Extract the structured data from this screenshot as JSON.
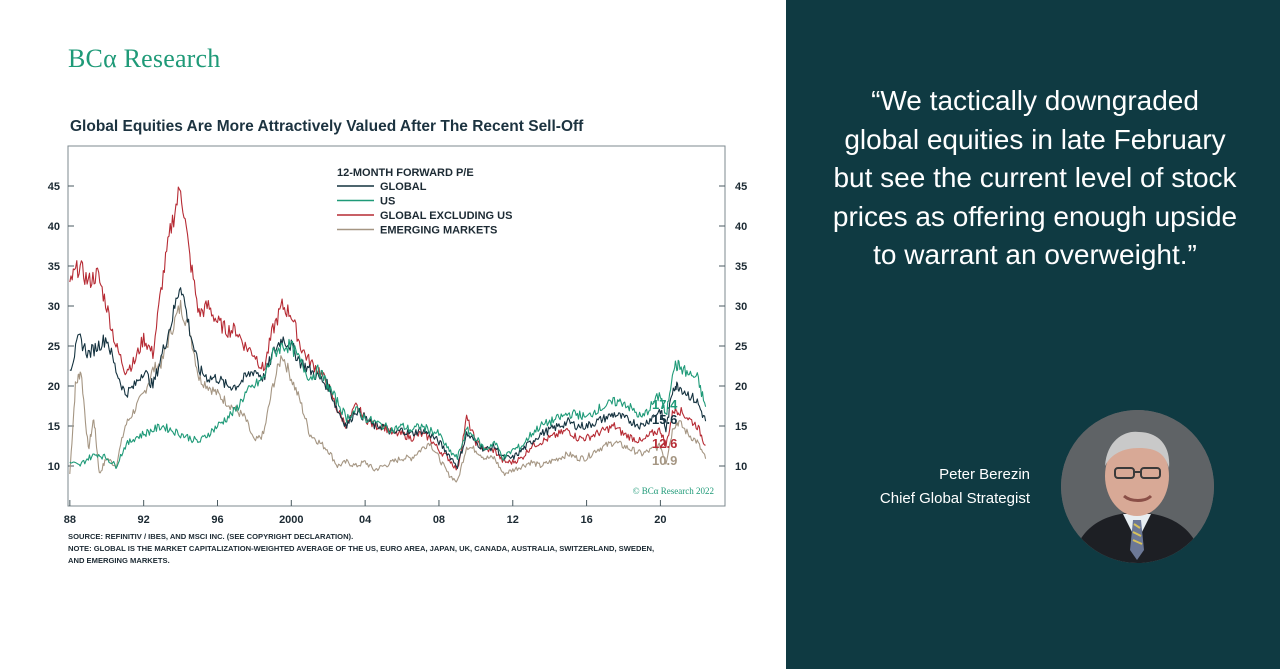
{
  "brand": {
    "logo": "BCα Research"
  },
  "chart_title": "Global Equities Are More Attractively Valued After The Recent Sell-Off",
  "chart_data": {
    "type": "line",
    "title": "Global Equities Are More Attractively Valued After The Recent Sell-Off",
    "legend_title": "12-MONTH FORWARD P/E",
    "legend_placement": "top-center",
    "x_ticks": [
      "88",
      "92",
      "96",
      "2000",
      "04",
      "08",
      "12",
      "16",
      "20"
    ],
    "x_tick_years": [
      1988,
      1992,
      1996,
      2000,
      2004,
      2008,
      2012,
      2016,
      2020
    ],
    "xlim": [
      1987.9,
      2023.5
    ],
    "y_ticks": [
      10,
      15,
      20,
      25,
      30,
      35,
      40,
      45
    ],
    "ylim": [
      5,
      50
    ],
    "grid": false,
    "copyright": "© BCα Research 2022",
    "series": [
      {
        "name": "GLOBAL",
        "color": "#14323f",
        "end_label": "15.6",
        "points": [
          [
            1988.0,
            22
          ],
          [
            1988.5,
            26
          ],
          [
            1989.0,
            24
          ],
          [
            1989.5,
            25
          ],
          [
            1990.0,
            26
          ],
          [
            1990.5,
            22
          ],
          [
            1991.0,
            19
          ],
          [
            1991.5,
            20
          ],
          [
            1992.0,
            22
          ],
          [
            1992.5,
            20
          ],
          [
            1993.0,
            24
          ],
          [
            1993.5,
            28
          ],
          [
            1994.0,
            33
          ],
          [
            1994.5,
            27
          ],
          [
            1995.0,
            22
          ],
          [
            1995.5,
            21
          ],
          [
            1996.0,
            21
          ],
          [
            1996.5,
            20
          ],
          [
            1997.0,
            20
          ],
          [
            1997.5,
            21
          ],
          [
            1998.0,
            22
          ],
          [
            1998.5,
            21
          ],
          [
            1999.0,
            24
          ],
          [
            1999.5,
            26
          ],
          [
            2000.0,
            25
          ],
          [
            2000.5,
            23
          ],
          [
            2001.0,
            22
          ],
          [
            2001.5,
            21
          ],
          [
            2002.0,
            20
          ],
          [
            2002.5,
            17
          ],
          [
            2003.0,
            15
          ],
          [
            2003.5,
            17
          ],
          [
            2004.0,
            16
          ],
          [
            2004.5,
            15
          ],
          [
            2005.0,
            15
          ],
          [
            2005.5,
            14
          ],
          [
            2006.0,
            14.5
          ],
          [
            2006.5,
            14
          ],
          [
            2007.0,
            14.5
          ],
          [
            2007.5,
            14
          ],
          [
            2008.0,
            13
          ],
          [
            2008.5,
            11.5
          ],
          [
            2009.0,
            10
          ],
          [
            2009.5,
            14
          ],
          [
            2010.0,
            13
          ],
          [
            2010.5,
            12
          ],
          [
            2011.0,
            12.5
          ],
          [
            2011.5,
            11
          ],
          [
            2012.0,
            11
          ],
          [
            2012.5,
            12
          ],
          [
            2013.0,
            13
          ],
          [
            2013.5,
            14
          ],
          [
            2014.0,
            14.5
          ],
          [
            2014.5,
            15
          ],
          [
            2015.0,
            15.5
          ],
          [
            2015.5,
            15
          ],
          [
            2016.0,
            15
          ],
          [
            2016.5,
            15.5
          ],
          [
            2017.0,
            16
          ],
          [
            2017.5,
            16.5
          ],
          [
            2018.0,
            16
          ],
          [
            2018.5,
            15.5
          ],
          [
            2019.0,
            15
          ],
          [
            2019.5,
            16
          ],
          [
            2020.0,
            17
          ],
          [
            2020.3,
            14.5
          ],
          [
            2020.7,
            20
          ],
          [
            2021.0,
            20
          ],
          [
            2021.5,
            19
          ],
          [
            2022.0,
            18
          ],
          [
            2022.45,
            15.6
          ]
        ]
      },
      {
        "name": "US",
        "color": "#1f9a78",
        "end_label": "17.4",
        "points": [
          [
            1988.0,
            10.5
          ],
          [
            1988.5,
            10
          ],
          [
            1989.0,
            11
          ],
          [
            1989.5,
            11.5
          ],
          [
            1990.0,
            11
          ],
          [
            1990.5,
            10
          ],
          [
            1991.0,
            12.5
          ],
          [
            1991.5,
            13.5
          ],
          [
            1992.0,
            14
          ],
          [
            1992.5,
            14.5
          ],
          [
            1993.0,
            15
          ],
          [
            1993.5,
            14.5
          ],
          [
            1994.0,
            14
          ],
          [
            1994.5,
            13.5
          ],
          [
            1995.0,
            13
          ],
          [
            1995.5,
            14
          ],
          [
            1996.0,
            15
          ],
          [
            1996.5,
            16
          ],
          [
            1997.0,
            17
          ],
          [
            1997.5,
            19
          ],
          [
            1998.0,
            20
          ],
          [
            1998.5,
            21
          ],
          [
            1999.0,
            24
          ],
          [
            1999.5,
            25
          ],
          [
            2000.0,
            25
          ],
          [
            2000.5,
            23
          ],
          [
            2001.0,
            21
          ],
          [
            2001.5,
            22
          ],
          [
            2002.0,
            20
          ],
          [
            2002.5,
            18
          ],
          [
            2003.0,
            16
          ],
          [
            2003.5,
            17
          ],
          [
            2004.0,
            16
          ],
          [
            2004.5,
            15.5
          ],
          [
            2005.0,
            15
          ],
          [
            2005.5,
            14.5
          ],
          [
            2006.0,
            15
          ],
          [
            2006.5,
            14.5
          ],
          [
            2007.0,
            15
          ],
          [
            2007.5,
            14.5
          ],
          [
            2008.0,
            14
          ],
          [
            2008.5,
            12
          ],
          [
            2009.0,
            11
          ],
          [
            2009.5,
            14.5
          ],
          [
            2010.0,
            13.5
          ],
          [
            2010.5,
            12
          ],
          [
            2011.0,
            13
          ],
          [
            2011.5,
            11
          ],
          [
            2012.0,
            12
          ],
          [
            2012.5,
            12.5
          ],
          [
            2013.0,
            14
          ],
          [
            2013.5,
            15
          ],
          [
            2014.0,
            15.5
          ],
          [
            2014.5,
            16
          ],
          [
            2015.0,
            16.5
          ],
          [
            2015.5,
            16.5
          ],
          [
            2016.0,
            16
          ],
          [
            2016.5,
            17
          ],
          [
            2017.0,
            17.5
          ],
          [
            2017.5,
            18
          ],
          [
            2018.0,
            18
          ],
          [
            2018.5,
            17
          ],
          [
            2019.0,
            16
          ],
          [
            2019.5,
            17.5
          ],
          [
            2020.0,
            19
          ],
          [
            2020.3,
            16
          ],
          [
            2020.7,
            22.5
          ],
          [
            2021.0,
            22.5
          ],
          [
            2021.5,
            21.5
          ],
          [
            2022.0,
            21
          ],
          [
            2022.45,
            17.4
          ]
        ]
      },
      {
        "name": "GLOBAL EXCLUDING US",
        "color": "#b62b34",
        "end_label": "12.6",
        "points": [
          [
            1988.0,
            33
          ],
          [
            1988.5,
            35
          ],
          [
            1989.0,
            33
          ],
          [
            1989.5,
            34
          ],
          [
            1990.0,
            30
          ],
          [
            1990.5,
            25
          ],
          [
            1991.0,
            22
          ],
          [
            1991.5,
            23
          ],
          [
            1992.0,
            26
          ],
          [
            1992.5,
            24
          ],
          [
            1993.0,
            33
          ],
          [
            1993.5,
            40
          ],
          [
            1994.0,
            45
          ],
          [
            1994.5,
            36
          ],
          [
            1995.0,
            29
          ],
          [
            1995.5,
            30
          ],
          [
            1996.0,
            28
          ],
          [
            1996.5,
            27
          ],
          [
            1997.0,
            27
          ],
          [
            1997.5,
            25
          ],
          [
            1998.0,
            24
          ],
          [
            1998.5,
            22
          ],
          [
            1999.0,
            27
          ],
          [
            1999.5,
            30
          ],
          [
            2000.0,
            29
          ],
          [
            2000.5,
            25
          ],
          [
            2001.0,
            23
          ],
          [
            2001.5,
            22
          ],
          [
            2002.0,
            20
          ],
          [
            2002.5,
            17
          ],
          [
            2003.0,
            15
          ],
          [
            2003.5,
            17.5
          ],
          [
            2004.0,
            16
          ],
          [
            2004.5,
            15
          ],
          [
            2005.0,
            15
          ],
          [
            2005.5,
            14
          ],
          [
            2006.0,
            14
          ],
          [
            2006.5,
            13.5
          ],
          [
            2007.0,
            14
          ],
          [
            2007.5,
            13.5
          ],
          [
            2008.0,
            12
          ],
          [
            2008.5,
            11
          ],
          [
            2009.0,
            9.5
          ],
          [
            2009.5,
            16
          ],
          [
            2010.0,
            13
          ],
          [
            2010.5,
            12
          ],
          [
            2011.0,
            12
          ],
          [
            2011.5,
            10.5
          ],
          [
            2012.0,
            10.5
          ],
          [
            2012.5,
            11
          ],
          [
            2013.0,
            12.5
          ],
          [
            2013.5,
            13
          ],
          [
            2014.0,
            13.5
          ],
          [
            2014.5,
            14
          ],
          [
            2015.0,
            14.5
          ],
          [
            2015.5,
            13.5
          ],
          [
            2016.0,
            13.5
          ],
          [
            2016.5,
            14
          ],
          [
            2017.0,
            14.5
          ],
          [
            2017.5,
            15
          ],
          [
            2018.0,
            14
          ],
          [
            2018.5,
            13.5
          ],
          [
            2019.0,
            13
          ],
          [
            2019.5,
            14
          ],
          [
            2020.0,
            14.5
          ],
          [
            2020.3,
            12.5
          ],
          [
            2020.7,
            17
          ],
          [
            2021.0,
            17
          ],
          [
            2021.5,
            16
          ],
          [
            2022.0,
            15
          ],
          [
            2022.45,
            12.6
          ]
        ]
      },
      {
        "name": "EMERGING MARKETS",
        "color": "#a59683",
        "end_label": "10.9",
        "points": [
          [
            1988.0,
            9
          ],
          [
            1988.3,
            20
          ],
          [
            1988.6,
            22
          ],
          [
            1989.0,
            12
          ],
          [
            1989.3,
            16
          ],
          [
            1989.6,
            9
          ],
          [
            1990.0,
            11
          ],
          [
            1990.5,
            10
          ],
          [
            1991.0,
            15
          ],
          [
            1991.5,
            17
          ],
          [
            1992.0,
            19
          ],
          [
            1992.5,
            22
          ],
          [
            1993.0,
            23
          ],
          [
            1993.5,
            27
          ],
          [
            1994.0,
            30
          ],
          [
            1994.5,
            27
          ],
          [
            1995.0,
            21
          ],
          [
            1995.5,
            20
          ],
          [
            1996.0,
            19
          ],
          [
            1996.5,
            18
          ],
          [
            1997.0,
            17
          ],
          [
            1997.5,
            16
          ],
          [
            1998.0,
            13
          ],
          [
            1998.5,
            14
          ],
          [
            1999.0,
            20
          ],
          [
            1999.5,
            24
          ],
          [
            2000.0,
            21
          ],
          [
            2000.5,
            18
          ],
          [
            2001.0,
            14
          ],
          [
            2001.5,
            13
          ],
          [
            2002.0,
            12
          ],
          [
            2002.5,
            10
          ],
          [
            2003.0,
            10.5
          ],
          [
            2003.5,
            10
          ],
          [
            2004.0,
            10.5
          ],
          [
            2004.5,
            9.5
          ],
          [
            2005.0,
            10
          ],
          [
            2005.5,
            10.5
          ],
          [
            2006.0,
            11
          ],
          [
            2006.5,
            11
          ],
          [
            2007.0,
            12
          ],
          [
            2007.5,
            13
          ],
          [
            2008.0,
            11
          ],
          [
            2008.5,
            9
          ],
          [
            2009.0,
            8
          ],
          [
            2009.5,
            12.5
          ],
          [
            2010.0,
            12
          ],
          [
            2010.5,
            11
          ],
          [
            2011.0,
            11
          ],
          [
            2011.5,
            9
          ],
          [
            2012.0,
            9.5
          ],
          [
            2012.5,
            10
          ],
          [
            2013.0,
            10.5
          ],
          [
            2013.5,
            10
          ],
          [
            2014.0,
            10.5
          ],
          [
            2014.5,
            11
          ],
          [
            2015.0,
            11.5
          ],
          [
            2015.5,
            11
          ],
          [
            2016.0,
            11
          ],
          [
            2016.5,
            12
          ],
          [
            2017.0,
            12.5
          ],
          [
            2017.5,
            13
          ],
          [
            2018.0,
            12.5
          ],
          [
            2018.5,
            12
          ],
          [
            2019.0,
            11.5
          ],
          [
            2019.5,
            12
          ],
          [
            2020.0,
            12.5
          ],
          [
            2020.3,
            10.5
          ],
          [
            2020.7,
            15
          ],
          [
            2021.0,
            15.5
          ],
          [
            2021.5,
            14
          ],
          [
            2022.0,
            13
          ],
          [
            2022.45,
            10.9
          ]
        ]
      }
    ]
  },
  "notes": {
    "source": "SOURCE: REFINITIV / IBES, AND MSCI INC. (SEE COPYRIGHT DECLARATION).",
    "note_line1": "NOTE: GLOBAL IS THE MARKET CAPITALIZATION-WEIGHTED AVERAGE OF THE US, EURO AREA, JAPAN, UK, CANADA, AUSTRALIA, SWITZERLAND, SWEDEN,",
    "note_line2": "AND EMERGING MARKETS."
  },
  "quote": "“We tactically downgraded global equities in late February but see the current level of stock prices as offering enough upside to warrant an overweight.”",
  "person": {
    "name": "Peter Berezin",
    "role": "Chief Global Strategist"
  }
}
